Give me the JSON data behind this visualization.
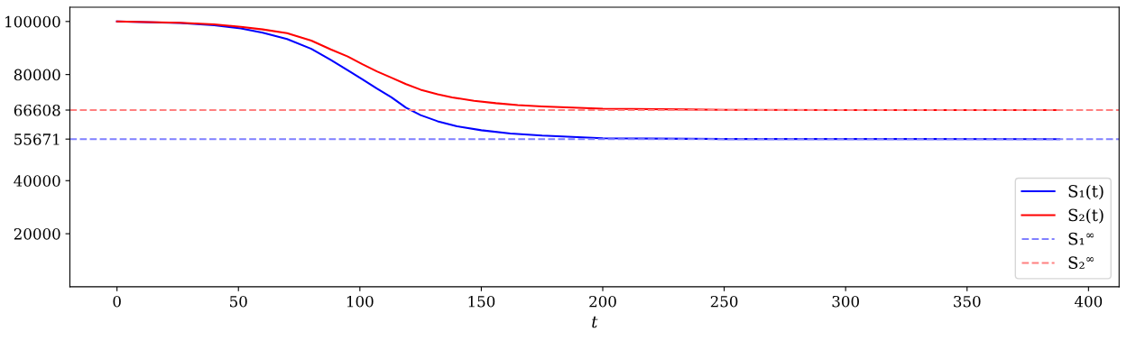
{
  "chart_data": {
    "type": "line",
    "xlabel": "t",
    "series": [
      {
        "name": "S₁(t)",
        "color": "#0000ff",
        "x": [
          0,
          26,
          40,
          51,
          60,
          70,
          80,
          88,
          95,
          101,
          107,
          113,
          119,
          125,
          132,
          140,
          150,
          162,
          175,
          200,
          250,
          300,
          388
        ],
        "values": [
          100000,
          99400,
          98600,
          97400,
          95800,
          93400,
          89700,
          85500,
          81600,
          78200,
          74700,
          71400,
          67500,
          64700,
          62400,
          60500,
          59000,
          57800,
          57000,
          56000,
          55700,
          55700,
          55671
        ]
      },
      {
        "name": "S₂(t)",
        "color": "#ff0000",
        "x": [
          0,
          26,
          40,
          51,
          60,
          70,
          80,
          88,
          95,
          101,
          107,
          113,
          119,
          125,
          132,
          138,
          147,
          156,
          165,
          175,
          200,
          250,
          300,
          388
        ],
        "values": [
          100000,
          99500,
          98900,
          98000,
          97000,
          95600,
          92800,
          89500,
          86800,
          83900,
          81200,
          78800,
          76400,
          74300,
          72600,
          71400,
          70100,
          69200,
          68500,
          68000,
          67100,
          66700,
          66600,
          66608
        ]
      }
    ],
    "ref_lines": [
      {
        "axis": "y",
        "value": 55671,
        "label": "S₁$^{∞}$",
        "color": "#8080ff",
        "line_style": "dashed"
      },
      {
        "axis": "y",
        "value": 66608,
        "label": "S₂$^{∞}$",
        "color": "#ff8080",
        "line_style": "dashed"
      }
    ],
    "xlim": [
      -19.4,
      412.6
    ],
    "xticks": [
      0,
      50,
      100,
      150,
      200,
      250,
      300,
      350,
      400
    ],
    "ylim": [
      0,
      105400
    ],
    "yticks": [
      20000,
      40000,
      55671,
      66608,
      80000,
      100000
    ],
    "grid": false,
    "legend": "bottom right",
    "line_style": "solid",
    "marker": "none"
  }
}
